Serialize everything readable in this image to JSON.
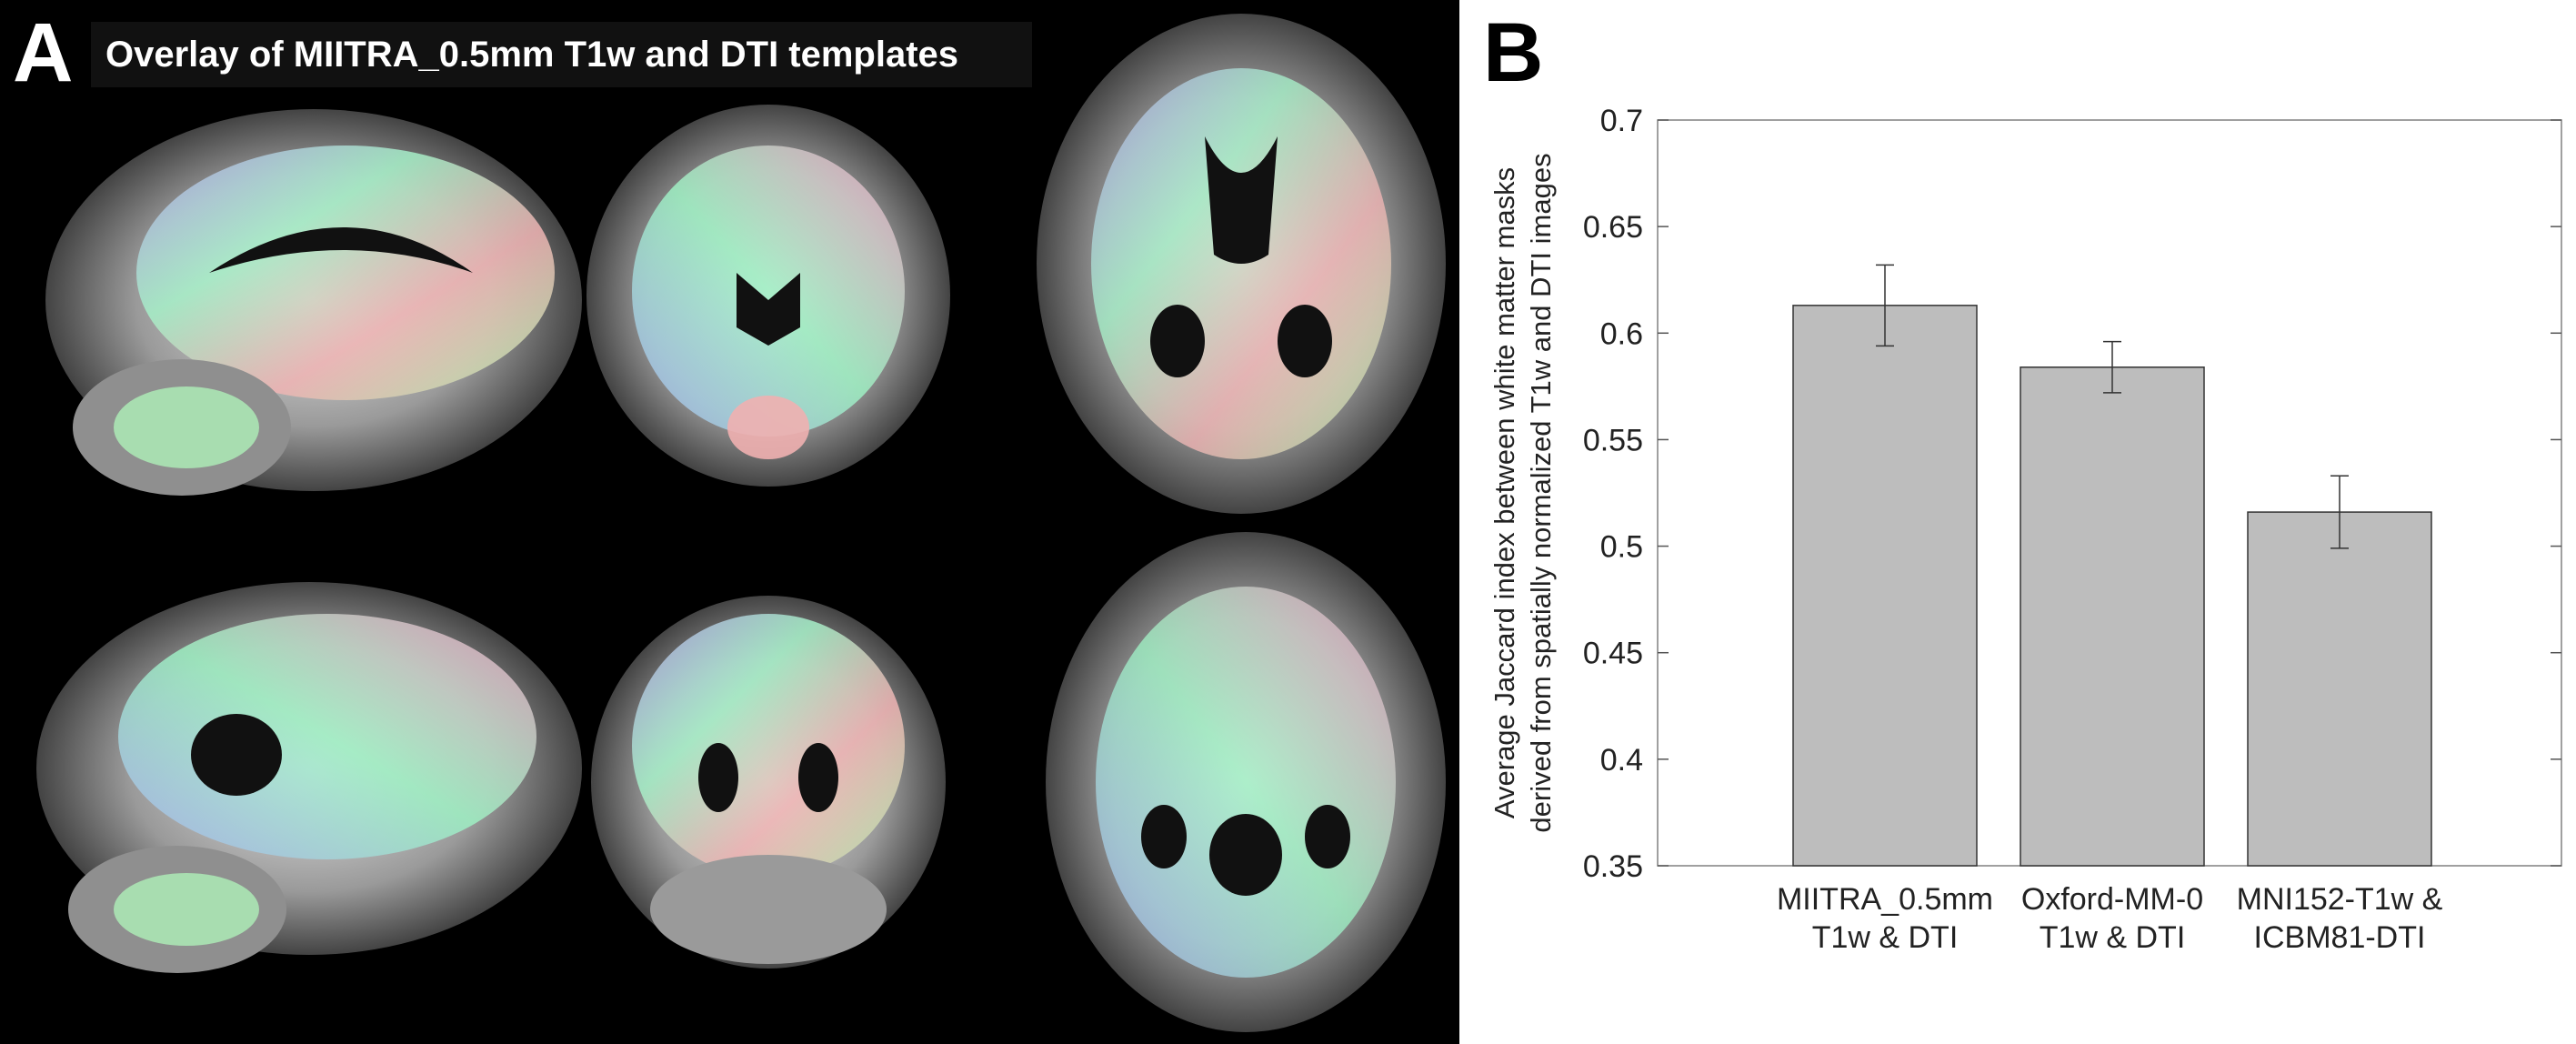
{
  "panel_a": {
    "letter": "A",
    "title": "Overlay of MIITRA_0.5mm T1w and DTI templates",
    "views": [
      "sagittal",
      "coronal",
      "axial",
      "sagittal",
      "coronal",
      "axial"
    ]
  },
  "panel_b": {
    "letter": "B"
  },
  "chart_data": {
    "type": "bar",
    "categories": [
      [
        "MIITRA_0.5mm",
        "T1w & DTI"
      ],
      [
        "Oxford-MM-0",
        "T1w & DTI"
      ],
      [
        "MNI152-T1w &",
        "ICBM81-DTI"
      ]
    ],
    "values": [
      0.613,
      0.584,
      0.516
    ],
    "errors": [
      0.019,
      0.012,
      0.017
    ],
    "title": "",
    "xlabel": "",
    "ylabel": [
      "Average Jaccard index between white matter masks",
      "derived from spatially normalized T1w and DTI images"
    ],
    "ylim": [
      0.35,
      0.7
    ],
    "yticks": [
      "0.35",
      "0.4",
      "0.45",
      "0.5",
      "0.55",
      "0.6",
      "0.65",
      "0.7"
    ],
    "grid": false,
    "bar_color": "#bdbdbd",
    "bar_edge_color": "#333333"
  }
}
